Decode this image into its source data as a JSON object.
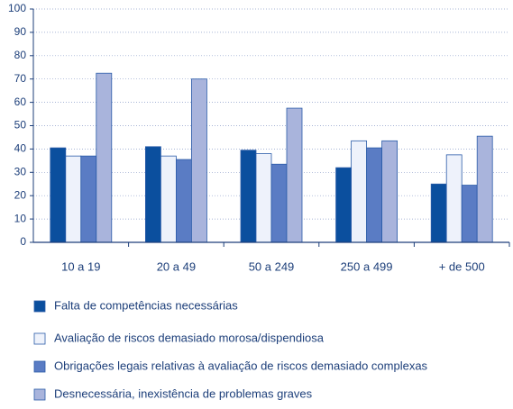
{
  "chart_data": {
    "type": "bar",
    "categories": [
      "10 a 19",
      "20 a 49",
      "50 a 249",
      "250 a 499",
      "+ de 500"
    ],
    "series": [
      {
        "name": "Falta de competências necessárias",
        "color": "#0b4f9e",
        "values": [
          40.5,
          41,
          39.5,
          32,
          25
        ]
      },
      {
        "name": "Avaliação de riscos demasiado morosa/dispendiosa",
        "color": "#eef2fb",
        "values": [
          37,
          37,
          38,
          43.5,
          37.5
        ]
      },
      {
        "name": "Obrigações legais relativas à avaliação de riscos demasiado complexas",
        "color": "#5a7cc4",
        "values": [
          37,
          35.5,
          33.5,
          40.5,
          24.5
        ]
      },
      {
        "name": "Desnecessária, inexistência de problemas graves",
        "color": "#a9b4dc",
        "values": [
          72.5,
          70,
          57.5,
          43.5,
          45.5
        ]
      }
    ],
    "ylim": [
      0,
      100
    ],
    "yticks": [
      0,
      10,
      20,
      30,
      40,
      50,
      60,
      70,
      80,
      90,
      100
    ],
    "grid": true
  }
}
